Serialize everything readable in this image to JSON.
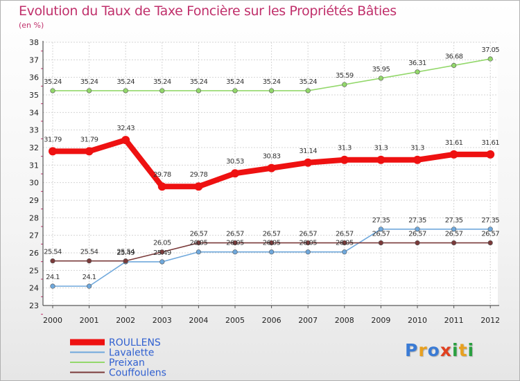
{
  "chart_data": {
    "type": "line",
    "title": "Evolution du Taux de Taxe Foncière sur les Propriétés Bâties",
    "subtitle": "(en %)",
    "x": [
      "2000",
      "2001",
      "2002",
      "2003",
      "2004",
      "2005",
      "2006",
      "2007",
      "2008",
      "2009",
      "2010",
      "2011",
      "2012"
    ],
    "ylim": [
      23,
      38
    ],
    "yticks": [
      "23",
      "24",
      "25",
      "26",
      "27",
      "28",
      "29",
      "30",
      "31",
      "32",
      "33",
      "34",
      "35",
      "36",
      "37",
      "38"
    ],
    "grid": true,
    "series": [
      {
        "name": "ROULLENS",
        "color": "#ee1111",
        "values": [
          31.79,
          31.79,
          32.43,
          29.78,
          29.78,
          30.53,
          30.83,
          31.14,
          31.3,
          31.3,
          31.3,
          31.61,
          31.61
        ],
        "labels": [
          "31.79",
          "31.79",
          "32.43",
          "29.78",
          "29.78",
          "30.53",
          "30.83",
          "31.14",
          "31.3",
          "31.3",
          "31.3",
          "31.61",
          "31.61"
        ]
      },
      {
        "name": "Lavalette",
        "color": "#6fa8dc",
        "values": [
          24.1,
          24.1,
          25.49,
          25.49,
          26.05,
          26.05,
          26.05,
          26.05,
          26.05,
          27.35,
          27.35,
          27.35,
          27.35
        ],
        "labels": [
          "24.1",
          "24.1",
          "25.49",
          "25.49",
          "26.05",
          "26.05",
          "26.05",
          "26.05",
          "26.05",
          "27.35",
          "27.35",
          "27.35",
          "27.35"
        ]
      },
      {
        "name": "Preixan",
        "color": "#93d86b",
        "values": [
          35.24,
          35.24,
          35.24,
          35.24,
          35.24,
          35.24,
          35.24,
          35.24,
          35.59,
          35.95,
          36.31,
          36.68,
          37.05
        ],
        "labels": [
          "35.24",
          "35.24",
          "35.24",
          "35.24",
          "35.24",
          "35.24",
          "35.24",
          "35.24",
          "35.59",
          "35.95",
          "36.31",
          "36.68",
          "37.05"
        ]
      },
      {
        "name": "Couffoulens",
        "color": "#7a3a3a",
        "values": [
          25.54,
          25.54,
          25.54,
          26.05,
          26.57,
          26.57,
          26.57,
          26.57,
          26.57,
          26.57,
          26.57,
          26.57,
          26.57
        ],
        "labels": [
          "25.54",
          "25.54",
          "25.54",
          "26.05",
          "26.57",
          "26.57",
          "26.57",
          "26.57",
          "26.57",
          "26.57",
          "26.57",
          "26.57",
          "26.57"
        ]
      }
    ]
  },
  "logo": {
    "letters": [
      "P",
      "r",
      "o",
      "x",
      "i",
      "t",
      "i"
    ],
    "colors": [
      "#3a7bd5",
      "#e8a020",
      "#3a7bd5",
      "#e04020",
      "#2aa040",
      "#e8a020",
      "#2aa040"
    ]
  }
}
